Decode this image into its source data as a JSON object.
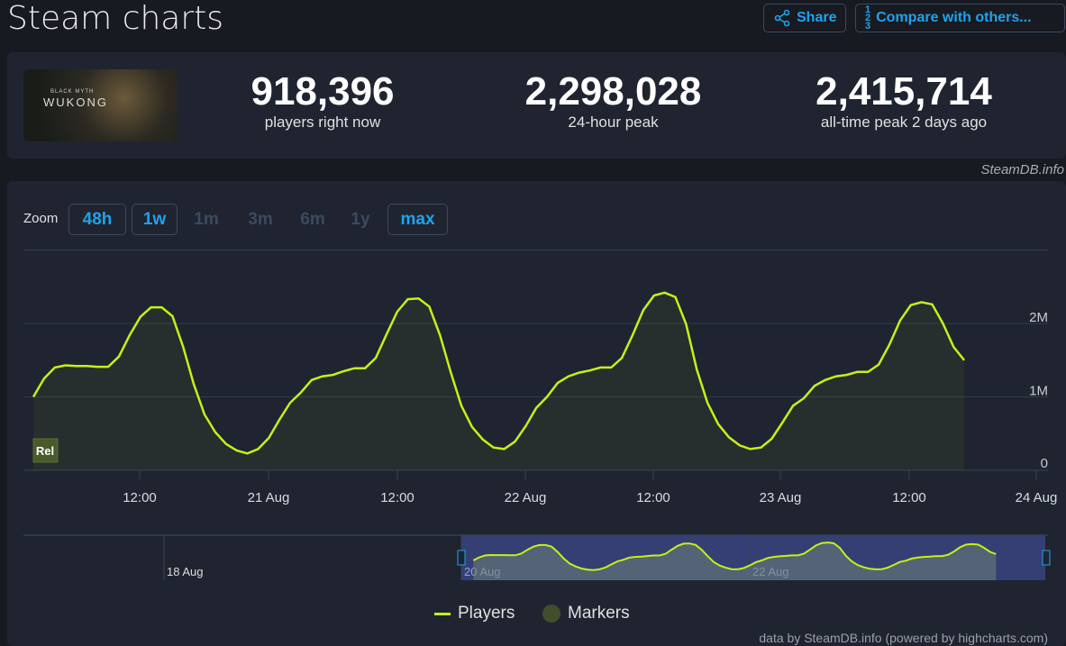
{
  "header": {
    "title": "Steam charts",
    "share_label": "Share",
    "compare_label": "Compare with others..."
  },
  "game": {
    "cover_title": "WUKONG",
    "cover_subtitle": "BLACK MYTH"
  },
  "stats": [
    {
      "value": "918,396",
      "label": "players right now"
    },
    {
      "value": "2,298,028",
      "label": "24-hour peak"
    },
    {
      "value": "2,415,714",
      "label": "all-time peak 2 days ago"
    }
  ],
  "credit": "SteamDB.info",
  "zoom": {
    "label": "Zoom",
    "options": [
      {
        "label": "48h",
        "enabled": true
      },
      {
        "label": "1w",
        "enabled": true
      },
      {
        "label": "1m",
        "enabled": false
      },
      {
        "label": "3m",
        "enabled": false
      },
      {
        "label": "6m",
        "enabled": false
      },
      {
        "label": "1y",
        "enabled": false
      },
      {
        "label": "max",
        "enabled": true
      }
    ]
  },
  "colors": {
    "line": "#c6f018",
    "accent": "#1fa3ec",
    "marker": "#4a5a2a"
  },
  "chart_data": {
    "type": "line",
    "series": [
      {
        "name": "Players",
        "x_start": "20 Aug 02:00",
        "interval_hours": 1,
        "values": [
          1.0,
          1.25,
          1.4,
          1.43,
          1.42,
          1.42,
          1.41,
          1.41,
          1.55,
          1.84,
          2.09,
          2.22,
          2.22,
          2.1,
          1.68,
          1.17,
          0.76,
          0.52,
          0.36,
          0.27,
          0.23,
          0.29,
          0.44,
          0.69,
          0.92,
          1.06,
          1.23,
          1.28,
          1.3,
          1.35,
          1.39,
          1.39,
          1.53,
          1.85,
          2.16,
          2.33,
          2.34,
          2.23,
          1.84,
          1.34,
          0.88,
          0.59,
          0.42,
          0.31,
          0.29,
          0.39,
          0.6,
          0.85,
          1.0,
          1.19,
          1.28,
          1.33,
          1.36,
          1.4,
          1.4,
          1.53,
          1.84,
          2.18,
          2.38,
          2.42,
          2.36,
          1.99,
          1.37,
          0.92,
          0.63,
          0.45,
          0.34,
          0.29,
          0.31,
          0.43,
          0.65,
          0.88,
          0.98,
          1.15,
          1.23,
          1.28,
          1.3,
          1.34,
          1.34,
          1.44,
          1.71,
          2.04,
          2.25,
          2.29,
          2.26,
          2.0,
          1.68,
          1.5
        ]
      }
    ],
    "value_unit": "millions of players",
    "y_ticks": [
      "0",
      "1M",
      "2M"
    ],
    "ylim": [
      0,
      3
    ],
    "x_ticks": [
      "12:00",
      "21 Aug",
      "12:00",
      "22 Aug",
      "12:00",
      "23 Aug",
      "12:00",
      "24 Aug"
    ],
    "markers": [
      {
        "label": "Rel"
      }
    ],
    "navigator_ticks": [
      "18 Aug",
      "20 Aug",
      "22 Aug"
    ],
    "legend": [
      "Players",
      "Markers"
    ],
    "footer": "data by SteamDB.info (powered by highcharts.com)"
  }
}
